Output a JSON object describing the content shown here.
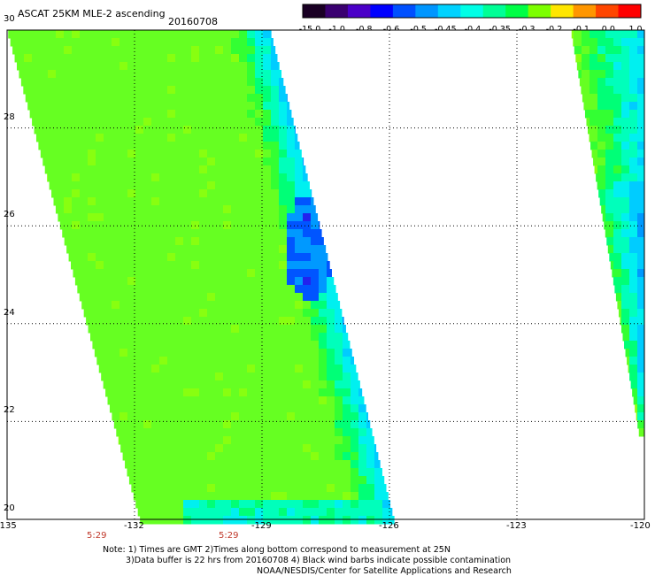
{
  "title": "ASCAT 25KM MLE-2 ascending",
  "date": "20160708",
  "colorbar": {
    "labels": [
      "-15.0",
      "-1.0",
      "-0.8",
      "-0.6",
      "-0.5",
      "-0.45",
      "-0.4",
      "-0.35",
      "-0.3",
      "-0.2",
      "-0.1",
      "0.0",
      "1.0"
    ],
    "colors": [
      "#1a0024",
      "#3a0070",
      "#4b00c8",
      "#0000ff",
      "#0050ff",
      "#0096ff",
      "#00d2ff",
      "#00ffe6",
      "#00ff96",
      "#00ff46",
      "#7cff00",
      "#ffe600",
      "#ff9600",
      "#ff4600",
      "#ff0000"
    ]
  },
  "map": {
    "lon_range": [
      -135,
      -120
    ],
    "lat_range": [
      20,
      30
    ],
    "x_labels": [
      "-135",
      "-132",
      "-129",
      "-126",
      "-123",
      "-120"
    ],
    "y_labels": [
      "30",
      "28",
      "26",
      "24",
      "22",
      "20"
    ],
    "gridlines": true
  },
  "times": [
    "5:29",
    "5:29"
  ],
  "notes": [
    "Note: 1) Times are GMT 2)Times along bottom correspond to measurement at 25N",
    "3)Data buffer is 22 hrs from 20160708 4) Black wind barbs indicate possible contamination",
    "NOAA/NESDIS/Center for Satellite Applications and Research"
  ]
}
